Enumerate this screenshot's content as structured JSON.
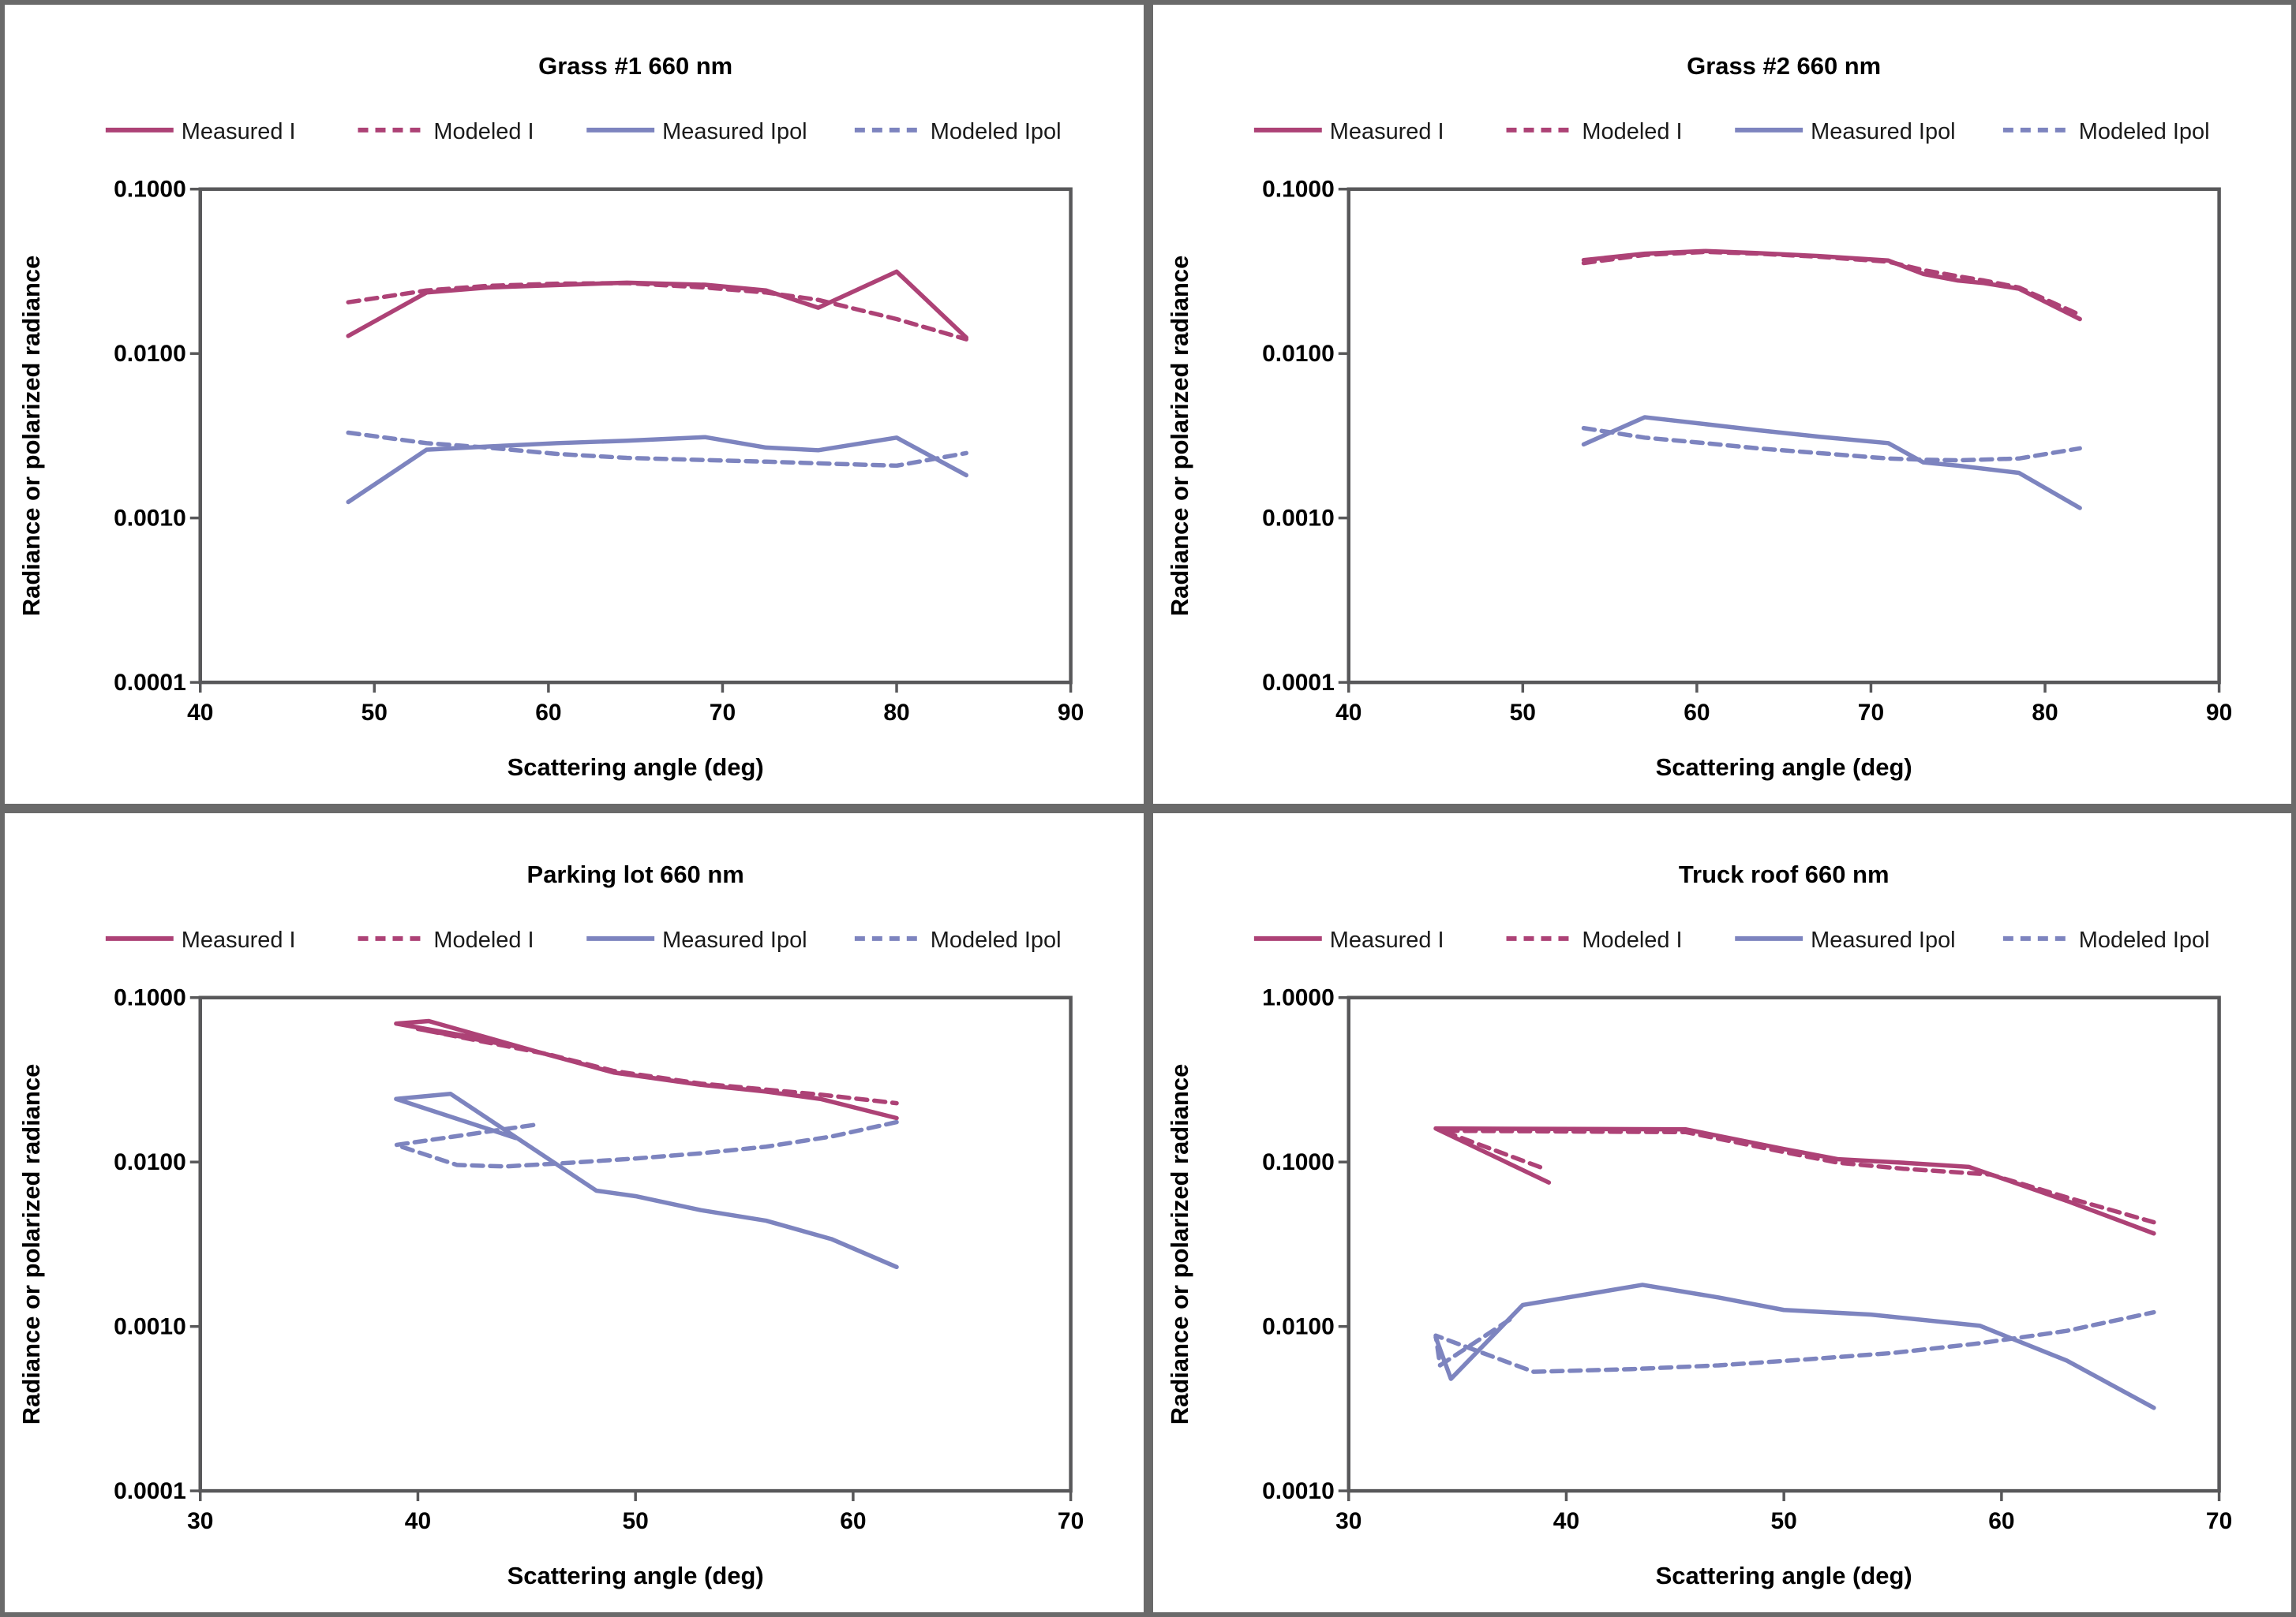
{
  "figure": {
    "xlabel": "Scattering angle (deg)",
    "ylabel": "Radiance or polarized radiance"
  },
  "colors": {
    "crimson": "#ad4276",
    "blue": "#7d84bf",
    "axis": "#58585a",
    "text": "#000000",
    "panel_border": "#6a6a6a",
    "background": "#ffffff"
  },
  "legend": [
    {
      "label": "Measured I",
      "color": "crimson",
      "dash": false
    },
    {
      "label": "Modeled I",
      "color": "crimson",
      "dash": true
    },
    {
      "label": "Measured Ipol",
      "color": "blue",
      "dash": false
    },
    {
      "label": "Modeled Ipol",
      "color": "blue",
      "dash": true
    }
  ],
  "chart_data": [
    {
      "type": "line",
      "title": "Grass #1 660 nm",
      "xlabel": "Scattering angle (deg)",
      "ylabel": "Radiance or polarized radiance",
      "x_range": [
        40,
        90
      ],
      "x_ticks": [
        40,
        50,
        60,
        70,
        80,
        90
      ],
      "y_log_range": [
        0.0001,
        0.1
      ],
      "y_tick_labels": [
        "0.1000",
        "0.0100",
        "0.0010",
        "0.0001"
      ],
      "grid": false,
      "legend_position": "top",
      "series": [
        {
          "name": "Measured I",
          "color": "crimson",
          "dash": false,
          "points": [
            [
              48.5,
              0.0128
            ],
            [
              53,
              0.0235
            ],
            [
              56.5,
              0.0252
            ],
            [
              60.5,
              0.0261
            ],
            [
              64.5,
              0.027
            ],
            [
              69,
              0.0262
            ],
            [
              72.5,
              0.0242
            ],
            [
              75.5,
              0.019
            ],
            [
              80,
              0.0315
            ],
            [
              84,
              0.0125
            ]
          ]
        },
        {
          "name": "Modeled I",
          "color": "crimson",
          "dash": true,
          "points": [
            [
              48.5,
              0.0205
            ],
            [
              53,
              0.0242
            ],
            [
              56.5,
              0.0258
            ],
            [
              60.5,
              0.0266
            ],
            [
              64.5,
              0.0268
            ],
            [
              69,
              0.0252
            ],
            [
              72.5,
              0.0235
            ],
            [
              75.5,
              0.0212
            ],
            [
              80,
              0.0162
            ],
            [
              84,
              0.0122
            ]
          ]
        },
        {
          "name": "Measured Ipol",
          "color": "blue",
          "dash": false,
          "points": [
            [
              48.5,
              0.00125
            ],
            [
              53,
              0.0026
            ],
            [
              56.5,
              0.00272
            ],
            [
              60.5,
              0.00285
            ],
            [
              64.5,
              0.00295
            ],
            [
              69,
              0.0031
            ],
            [
              72.5,
              0.00268
            ],
            [
              75.5,
              0.00258
            ],
            [
              80,
              0.00308
            ],
            [
              84,
              0.00182
            ]
          ]
        },
        {
          "name": "Modeled Ipol",
          "color": "blue",
          "dash": true,
          "points": [
            [
              48.5,
              0.0033
            ],
            [
              53,
              0.00285
            ],
            [
              56.5,
              0.00268
            ],
            [
              60.5,
              0.00245
            ],
            [
              64.5,
              0.00232
            ],
            [
              69,
              0.00225
            ],
            [
              72.5,
              0.0022
            ],
            [
              75.5,
              0.00215
            ],
            [
              80,
              0.00208
            ],
            [
              84,
              0.00248
            ]
          ]
        }
      ]
    },
    {
      "type": "line",
      "title": "Grass #2 660 nm",
      "xlabel": "Scattering angle (deg)",
      "ylabel": "Radiance or polarized radiance",
      "x_range": [
        40,
        90
      ],
      "x_ticks": [
        40,
        50,
        60,
        70,
        80,
        90
      ],
      "y_log_range": [
        0.0001,
        0.1
      ],
      "y_tick_labels": [
        "0.1000",
        "0.0100",
        "0.0010",
        "0.0001"
      ],
      "grid": false,
      "legend_position": "top",
      "series": [
        {
          "name": "Measured I",
          "color": "crimson",
          "dash": false,
          "points": [
            [
              53.5,
              0.037
            ],
            [
              57,
              0.0405
            ],
            [
              60.5,
              0.042
            ],
            [
              63.5,
              0.0408
            ],
            [
              67,
              0.0392
            ],
            [
              71,
              0.0368
            ],
            [
              73,
              0.0305
            ],
            [
              75,
              0.0278
            ],
            [
              76.5,
              0.0268
            ],
            [
              78.5,
              0.0248
            ],
            [
              82,
              0.0162
            ]
          ]
        },
        {
          "name": "Modeled I",
          "color": "crimson",
          "dash": true,
          "points": [
            [
              53.5,
              0.0355
            ],
            [
              57,
              0.0398
            ],
            [
              60.5,
              0.0415
            ],
            [
              63.5,
              0.0405
            ],
            [
              67,
              0.0388
            ],
            [
              71,
              0.0362
            ],
            [
              73,
              0.0322
            ],
            [
              75,
              0.0295
            ],
            [
              76.5,
              0.0278
            ],
            [
              78.5,
              0.0252
            ],
            [
              82,
              0.0172
            ]
          ]
        },
        {
          "name": "Measured Ipol",
          "color": "blue",
          "dash": false,
          "points": [
            [
              53.5,
              0.0028
            ],
            [
              57,
              0.0041
            ],
            [
              60.5,
              0.00372
            ],
            [
              63.5,
              0.00342
            ],
            [
              67,
              0.00312
            ],
            [
              71,
              0.00285
            ],
            [
              73,
              0.00218
            ],
            [
              75,
              0.00208
            ],
            [
              78.5,
              0.00188
            ],
            [
              82,
              0.00115
            ]
          ]
        },
        {
          "name": "Modeled Ipol",
          "color": "blue",
          "dash": true,
          "points": [
            [
              53.5,
              0.00352
            ],
            [
              57,
              0.00308
            ],
            [
              60.5,
              0.00285
            ],
            [
              63.5,
              0.00265
            ],
            [
              67,
              0.00248
            ],
            [
              71,
              0.0023
            ],
            [
              73,
              0.00226
            ],
            [
              75,
              0.00224
            ],
            [
              78.5,
              0.0023
            ],
            [
              82,
              0.00265
            ]
          ]
        }
      ]
    },
    {
      "type": "line",
      "title": "Parking lot 660 nm",
      "xlabel": "Scattering angle (deg)",
      "ylabel": "Radiance or polarized radiance",
      "x_range": [
        30,
        70
      ],
      "x_ticks": [
        30,
        40,
        50,
        60,
        70
      ],
      "y_log_range": [
        0.0001,
        0.1
      ],
      "y_tick_labels": [
        "0.1000",
        "0.0100",
        "0.0010",
        "0.0001"
      ],
      "grid": false,
      "legend_position": "top",
      "series": [
        {
          "name": "Measured I",
          "color": "crimson",
          "dash": false,
          "points": [
            [
              44,
              0.053
            ],
            [
              39,
              0.0695
            ],
            [
              40.5,
              0.072
            ],
            [
              45.5,
              0.0468
            ],
            [
              49,
              0.035
            ],
            [
              53,
              0.0295
            ],
            [
              56,
              0.0268
            ],
            [
              58.5,
              0.0242
            ],
            [
              62,
              0.0185
            ]
          ]
        },
        {
          "name": "Modeled I",
          "color": "crimson",
          "dash": true,
          "points": [
            [
              44.5,
              0.0505
            ],
            [
              40,
              0.0645
            ],
            [
              46,
              0.0452
            ],
            [
              49,
              0.0358
            ],
            [
              53,
              0.03
            ],
            [
              56,
              0.0276
            ],
            [
              58.5,
              0.0257
            ],
            [
              62,
              0.0228
            ]
          ]
        },
        {
          "name": "Measured Ipol",
          "color": "blue",
          "dash": false,
          "points": [
            [
              44.5,
              0.014
            ],
            [
              39,
              0.0242
            ],
            [
              41.5,
              0.026
            ],
            [
              48.2,
              0.0067
            ],
            [
              50,
              0.0062
            ],
            [
              53,
              0.0051
            ],
            [
              56,
              0.0044
            ],
            [
              59,
              0.0034
            ],
            [
              62,
              0.0023
            ]
          ]
        },
        {
          "name": "Modeled Ipol",
          "color": "blue",
          "dash": true,
          "points": [
            [
              45.3,
              0.0168
            ],
            [
              39,
              0.0127
            ],
            [
              41.8,
              0.0096
            ],
            [
              44,
              0.0094
            ],
            [
              47,
              0.0099
            ],
            [
              50,
              0.0105
            ],
            [
              53,
              0.0113
            ],
            [
              56,
              0.0124
            ],
            [
              59,
              0.0143
            ],
            [
              62,
              0.0175
            ]
          ]
        }
      ]
    },
    {
      "type": "line",
      "title": "Truck roof 660 nm",
      "xlabel": "Scattering angle (deg)",
      "ylabel": "Radiance or polarized radiance",
      "x_range": [
        30,
        70
      ],
      "x_ticks": [
        30,
        40,
        50,
        60,
        70
      ],
      "y_log_range": [
        0.001,
        1.0
      ],
      "y_tick_labels": [
        "1.0000",
        "0.1000",
        "0.0100",
        "0.0010"
      ],
      "grid": false,
      "legend_position": "top",
      "series": [
        {
          "name": "Measured I",
          "color": "crimson",
          "dash": false,
          "points": [
            [
              39.2,
              0.075
            ],
            [
              34,
              0.16
            ],
            [
              45.5,
              0.158
            ],
            [
              50,
              0.12
            ],
            [
              52.5,
              0.104
            ],
            [
              55.5,
              0.099
            ],
            [
              58.5,
              0.0935
            ],
            [
              63,
              0.058
            ],
            [
              67,
              0.0368
            ]
          ]
        },
        {
          "name": "Modeled I",
          "color": "crimson",
          "dash": true,
          "points": [
            [
              38.8,
              0.093
            ],
            [
              34.3,
              0.155
            ],
            [
              45.5,
              0.152
            ],
            [
              50,
              0.115
            ],
            [
              52.5,
              0.099
            ],
            [
              55.5,
              0.091
            ],
            [
              59.5,
              0.084
            ],
            [
              63,
              0.061
            ],
            [
              67,
              0.043
            ]
          ]
        },
        {
          "name": "Measured Ipol",
          "color": "blue",
          "dash": false,
          "points": [
            [
              34,
              0.0086
            ],
            [
              34.7,
              0.0048
            ],
            [
              38,
              0.0135
            ],
            [
              43.5,
              0.0179
            ],
            [
              47,
              0.015
            ],
            [
              50,
              0.0126
            ],
            [
              54,
              0.0118
            ],
            [
              59,
              0.0101
            ],
            [
              63,
              0.0062
            ],
            [
              67,
              0.0032
            ]
          ]
        },
        {
          "name": "Modeled Ipol",
          "color": "blue",
          "dash": true,
          "points": [
            [
              37.4,
              0.011
            ],
            [
              34.2,
              0.0058
            ],
            [
              34,
              0.0088
            ],
            [
              38.5,
              0.0053
            ],
            [
              43,
              0.0055
            ],
            [
              47,
              0.0058
            ],
            [
              51,
              0.0063
            ],
            [
              55,
              0.0069
            ],
            [
              59,
              0.0079
            ],
            [
              63,
              0.0094
            ],
            [
              67,
              0.0122
            ]
          ]
        }
      ]
    }
  ]
}
